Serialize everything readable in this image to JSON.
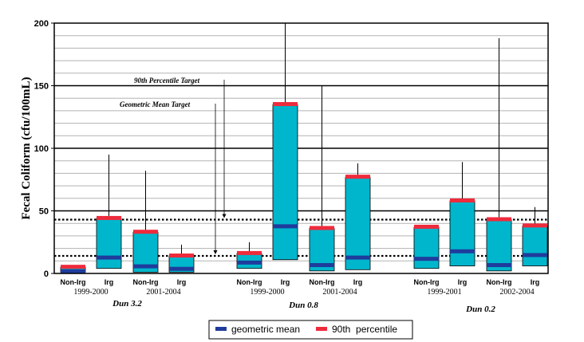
{
  "chart_data": {
    "type": "box",
    "ylabel": "Fecal Coliform (cfu/100mL)",
    "ylim": [
      0,
      200
    ],
    "yticks": [
      0,
      50,
      100,
      150,
      200
    ],
    "grid": true,
    "legend_position": "bottom",
    "colors": {
      "box": "#00b6cc",
      "mean": "#1f3c9c",
      "p90": "#ee2b3c",
      "frame": "#000000",
      "grid": "#b3b3b3"
    },
    "series": [
      {
        "name": "geometric mean"
      },
      {
        "name": "90th  percentile"
      }
    ],
    "targets": [
      {
        "label": "90th Percentile Target",
        "value": 43
      },
      {
        "label": "Geometric Mean Target",
        "value": 14
      }
    ],
    "sites": [
      {
        "site": "Dun 3.2",
        "periods": [
          {
            "period": "1999-2000",
            "groups": [
              {
                "label": "Non-Irg",
                "min": 1,
                "mean": 2,
                "p90": 5,
                "max": 5
              },
              {
                "label": "Irg",
                "min": 4,
                "mean": 13,
                "p90": 44,
                "max": 95
              }
            ]
          },
          {
            "period": "2001-2004",
            "groups": [
              {
                "label": "Non-Irg",
                "min": 1,
                "mean": 6,
                "p90": 33,
                "max": 82
              },
              {
                "label": "Irg",
                "min": 1,
                "mean": 4,
                "p90": 14,
                "max": 23
              }
            ]
          }
        ]
      },
      {
        "site": "Dun 0.8",
        "periods": [
          {
            "period": "1999-2000",
            "groups": [
              {
                "label": "Non-Irg",
                "min": 4,
                "mean": 9,
                "p90": 16,
                "max": 25
              },
              {
                "label": "Irg",
                "min": 11,
                "mean": 38,
                "p90": 135,
                "max": 210
              }
            ]
          },
          {
            "period": "2001-2004",
            "groups": [
              {
                "label": "Non-Irg",
                "min": 2,
                "mean": 7,
                "p90": 36,
                "max": 150
              },
              {
                "label": "Irg",
                "min": 3,
                "mean": 13,
                "p90": 77,
                "max": 88
              }
            ]
          }
        ]
      },
      {
        "site": "Dun 0.2",
        "periods": [
          {
            "period": "1999-2001",
            "groups": [
              {
                "label": "Non-Irg",
                "min": 4,
                "mean": 12,
                "p90": 37,
                "max": 37
              },
              {
                "label": "Irg",
                "min": 6,
                "mean": 18,
                "p90": 58,
                "max": 89
              }
            ]
          },
          {
            "period": "2002-2004",
            "groups": [
              {
                "label": "Non-Irg",
                "min": 2,
                "mean": 7,
                "p90": 43,
                "max": 188
              },
              {
                "label": "Irg",
                "min": 6,
                "mean": 15,
                "p90": 38,
                "max": 53
              }
            ]
          }
        ]
      }
    ]
  }
}
